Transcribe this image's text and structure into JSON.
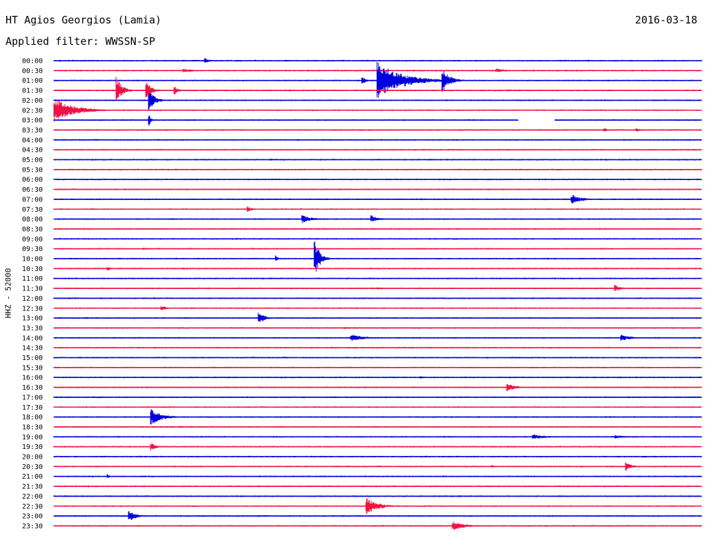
{
  "header": {
    "station": "HT Agios Georgios (Lamia)",
    "date": "2016-03-18",
    "filter": "Applied filter: WWSSN-SP"
  },
  "chart_data": {
    "type": "line",
    "title": "HT Agios Georgios (Lamia)",
    "ylabel": "HHZ - 52000",
    "xlabel": "",
    "colors": [
      "#0000dd",
      "#ee1144"
    ],
    "grid": false,
    "row_labels": [
      "00:00",
      "00:30",
      "01:00",
      "01:30",
      "02:00",
      "02:30",
      "03:00",
      "03:30",
      "04:00",
      "04:30",
      "05:00",
      "05:30",
      "06:00",
      "06:30",
      "07:00",
      "07:30",
      "08:00",
      "08:30",
      "09:00",
      "09:30",
      "10:00",
      "10:30",
      "11:00",
      "11:30",
      "12:00",
      "12:30",
      "13:00",
      "13:30",
      "14:00",
      "14:30",
      "15:00",
      "15:30",
      "16:00",
      "16:30",
      "17:00",
      "17:30",
      "18:00",
      "18:30",
      "19:00",
      "19:30",
      "20:00",
      "20:30",
      "21:00",
      "21:30",
      "22:00",
      "22:30",
      "23:00",
      "23:30"
    ],
    "row_minutes": 30,
    "gap": {
      "row": 6,
      "start_min": 21.5,
      "end_min": 23.2
    },
    "events": [
      {
        "row": 0,
        "t": 7.0,
        "amp": 4,
        "dur": 0.5
      },
      {
        "row": 1,
        "t": 6.0,
        "amp": 3,
        "dur": 1.2
      },
      {
        "row": 1,
        "t": 20.5,
        "amp": 3,
        "dur": 1.2
      },
      {
        "row": 2,
        "t": 14.3,
        "amp": 6,
        "dur": 0.4
      },
      {
        "row": 2,
        "t": 15.0,
        "amp": 28,
        "dur": 2.4
      },
      {
        "row": 2,
        "t": 18.0,
        "amp": 17,
        "dur": 0.8
      },
      {
        "row": 3,
        "t": 2.9,
        "amp": 20,
        "dur": 0.6
      },
      {
        "row": 3,
        "t": 4.3,
        "amp": 15,
        "dur": 0.5
      },
      {
        "row": 3,
        "t": 5.6,
        "amp": 6,
        "dur": 0.4
      },
      {
        "row": 4,
        "t": 4.4,
        "amp": 16,
        "dur": 0.6
      },
      {
        "row": 5,
        "t": 0.0,
        "amp": 18,
        "dur": 2.0
      },
      {
        "row": 6,
        "t": 4.4,
        "amp": 10,
        "dur": 0.2
      },
      {
        "row": 7,
        "t": 25.5,
        "amp": 3,
        "dur": 0.4
      },
      {
        "row": 7,
        "t": 27.0,
        "amp": 3,
        "dur": 0.4
      },
      {
        "row": 10,
        "t": 10.0,
        "amp": 2,
        "dur": 0.6
      },
      {
        "row": 14,
        "t": 24.0,
        "amp": 7,
        "dur": 1.0
      },
      {
        "row": 15,
        "t": 9.0,
        "amp": 4,
        "dur": 0.5
      },
      {
        "row": 16,
        "t": 11.5,
        "amp": 6,
        "dur": 1.0
      },
      {
        "row": 16,
        "t": 14.7,
        "amp": 6,
        "dur": 0.7
      },
      {
        "row": 19,
        "t": 4.2,
        "amp": 2,
        "dur": 0.4
      },
      {
        "row": 20,
        "t": 10.3,
        "amp": 5,
        "dur": 0.2
      },
      {
        "row": 20,
        "t": 12.1,
        "amp": 28,
        "dur": 0.5
      },
      {
        "row": 21,
        "t": 2.5,
        "amp": 3,
        "dur": 0.4
      },
      {
        "row": 21,
        "t": 6.0,
        "amp": 2,
        "dur": 0.4
      },
      {
        "row": 23,
        "t": 15.0,
        "amp": 2,
        "dur": 1.0
      },
      {
        "row": 23,
        "t": 26.0,
        "amp": 5,
        "dur": 0.6
      },
      {
        "row": 25,
        "t": 5.0,
        "amp": 4,
        "dur": 0.5
      },
      {
        "row": 26,
        "t": 9.5,
        "amp": 9,
        "dur": 0.6
      },
      {
        "row": 27,
        "t": 13.5,
        "amp": 2,
        "dur": 0.3
      },
      {
        "row": 28,
        "t": 13.8,
        "amp": 5,
        "dur": 1.4
      },
      {
        "row": 28,
        "t": 26.3,
        "amp": 5,
        "dur": 1.0
      },
      {
        "row": 32,
        "t": 17.0,
        "amp": 2,
        "dur": 0.5
      },
      {
        "row": 33,
        "t": 21.0,
        "amp": 7,
        "dur": 0.8
      },
      {
        "row": 36,
        "t": 4.5,
        "amp": 12,
        "dur": 1.1
      },
      {
        "row": 38,
        "t": 22.2,
        "amp": 4,
        "dur": 1.4
      },
      {
        "row": 38,
        "t": 26.0,
        "amp": 3,
        "dur": 1.1
      },
      {
        "row": 39,
        "t": 4.5,
        "amp": 6,
        "dur": 0.6
      },
      {
        "row": 41,
        "t": 20.3,
        "amp": 2,
        "dur": 0.6
      },
      {
        "row": 41,
        "t": 26.5,
        "amp": 7,
        "dur": 0.6
      },
      {
        "row": 42,
        "t": 2.5,
        "amp": 3,
        "dur": 0.3
      },
      {
        "row": 45,
        "t": 14.5,
        "amp": 12,
        "dur": 1.2
      },
      {
        "row": 46,
        "t": 3.5,
        "amp": 8,
        "dur": 0.7
      },
      {
        "row": 47,
        "t": 18.5,
        "amp": 7,
        "dur": 1.2
      }
    ]
  }
}
